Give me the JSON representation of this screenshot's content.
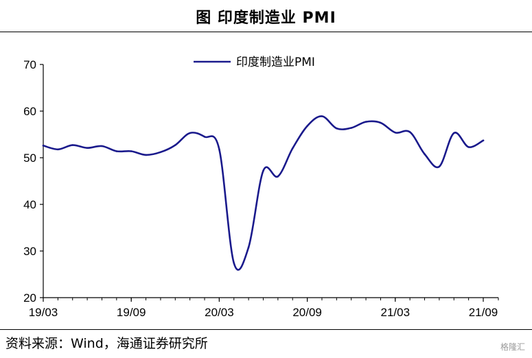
{
  "header": {
    "title": "图  印度制造业 PMI"
  },
  "footer": {
    "source": "资料来源：Wind，海通证券研究所",
    "watermark": "格隆汇"
  },
  "chart_data": {
    "type": "line",
    "title": "图  印度制造业 PMI",
    "xlabel": "",
    "ylabel": "",
    "ylim": [
      20,
      70
    ],
    "yticks": [
      20,
      30,
      40,
      50,
      60,
      70
    ],
    "xtick_labels": [
      "19/03",
      "19/09",
      "20/03",
      "20/09",
      "21/03",
      "21/09"
    ],
    "grid": false,
    "legend": "top-center",
    "series": [
      {
        "name": "印度制造业PMI",
        "color": "#1a1a8c",
        "x": [
          "19/03",
          "19/04",
          "19/05",
          "19/06",
          "19/07",
          "19/08",
          "19/09",
          "19/10",
          "19/11",
          "19/12",
          "20/01",
          "20/02",
          "20/03",
          "20/04",
          "20/05",
          "20/06",
          "20/07",
          "20/08",
          "20/09",
          "20/10",
          "20/11",
          "20/12",
          "21/01",
          "21/02",
          "21/03",
          "21/04",
          "21/05",
          "21/06",
          "21/07",
          "21/08",
          "21/09"
        ],
        "values": [
          52.6,
          51.8,
          52.7,
          52.1,
          52.5,
          51.4,
          51.4,
          50.6,
          51.2,
          52.7,
          55.3,
          54.5,
          51.8,
          27.4,
          30.8,
          47.2,
          46.0,
          52.0,
          56.8,
          58.9,
          56.3,
          56.4,
          57.7,
          57.5,
          55.4,
          55.5,
          50.8,
          48.1,
          55.3,
          52.3,
          53.7
        ]
      }
    ]
  }
}
